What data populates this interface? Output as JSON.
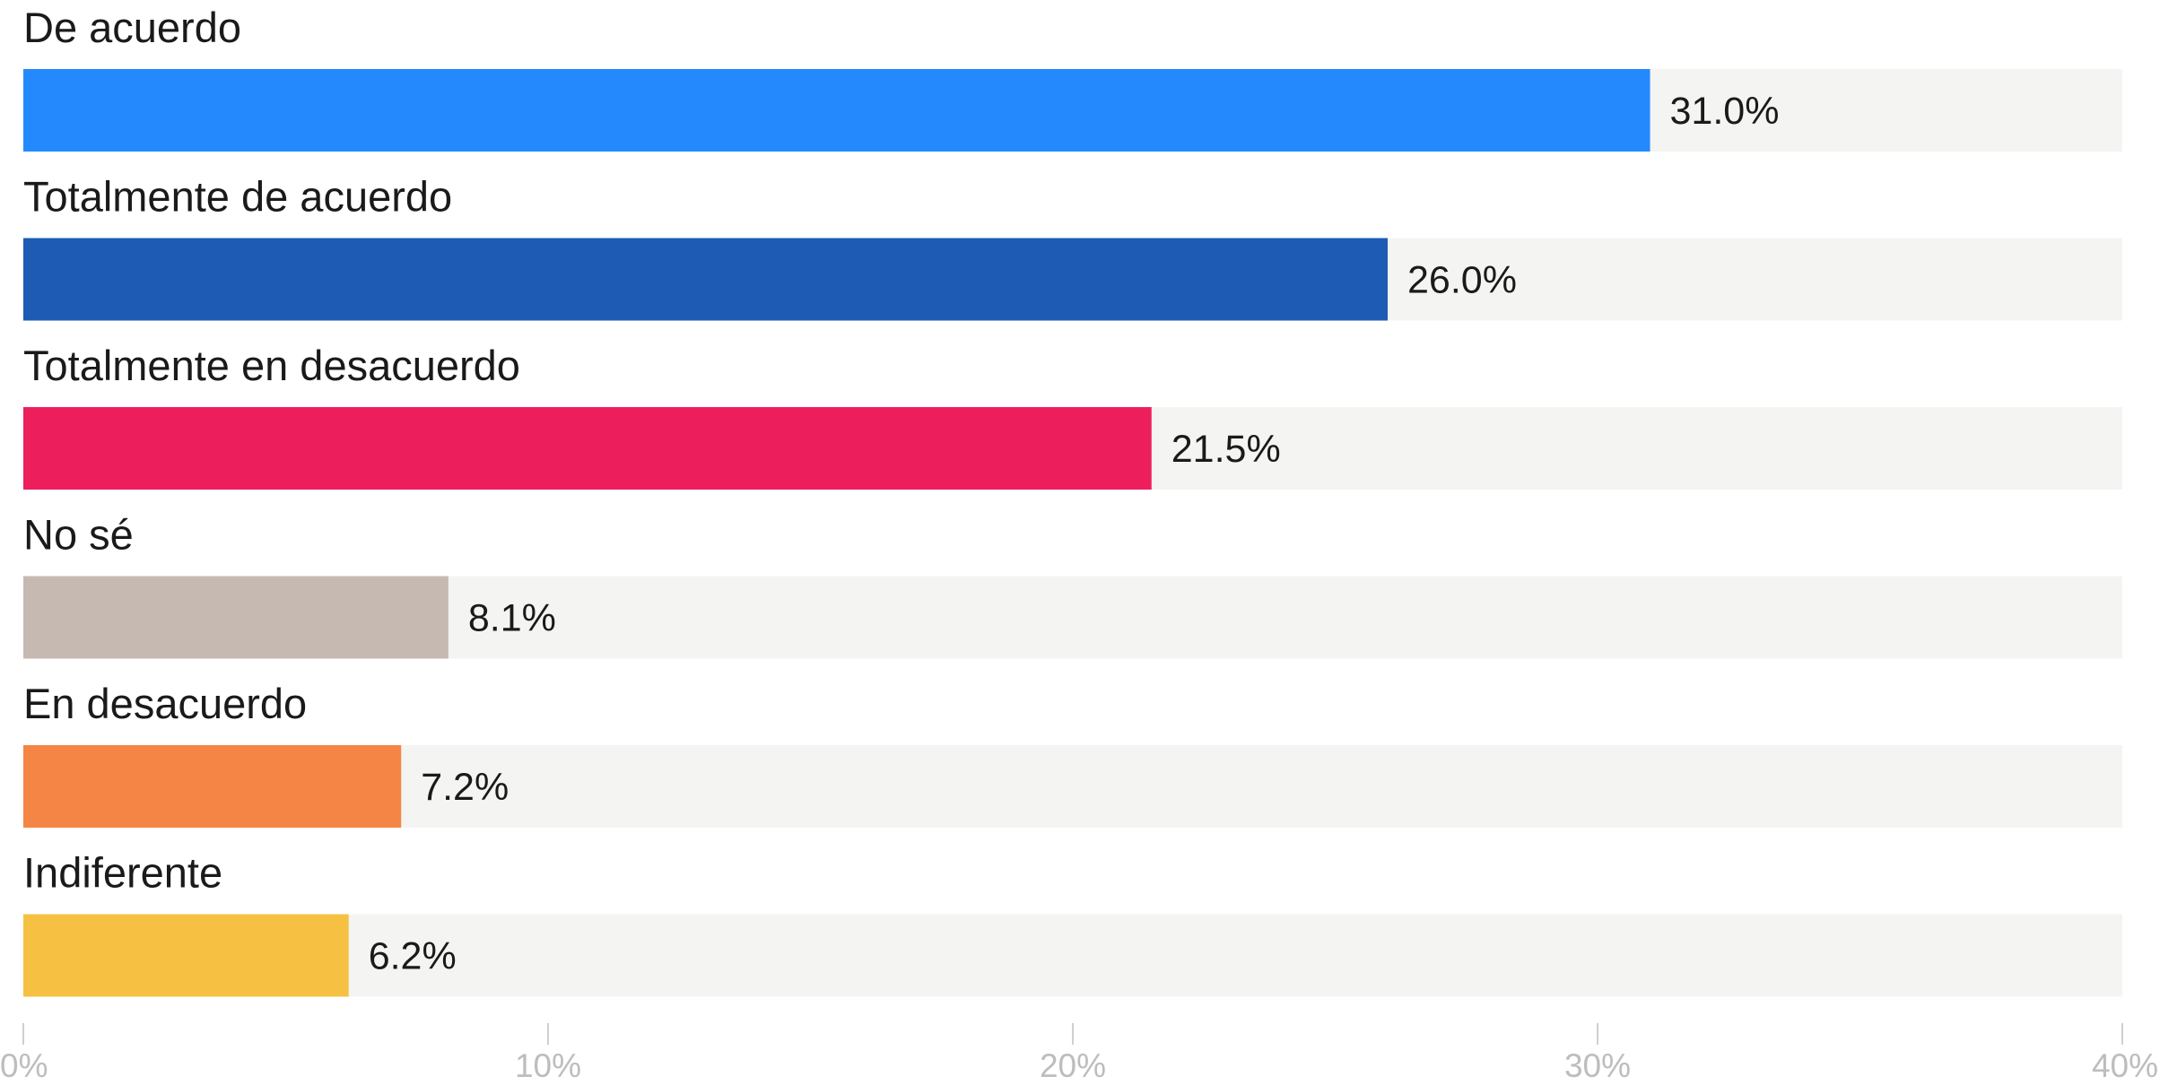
{
  "chart_data": {
    "type": "bar",
    "orientation": "horizontal",
    "title": "",
    "xlabel": "",
    "ylabel": "",
    "categories": [
      "De acuerdo",
      "Totalmente de acuerdo",
      "Totalmente en desacuerdo",
      "No sé",
      "En desacuerdo",
      "Indiferente"
    ],
    "values": [
      31.0,
      26.0,
      21.5,
      8.1,
      7.2,
      6.2
    ],
    "value_labels": [
      "31.0%",
      "26.0%",
      "21.5%",
      "8.1%",
      "7.2%",
      "6.2%"
    ],
    "colors": [
      "#2589FE",
      "#1D5BB5",
      "#EC1F5C",
      "#C6B9B1",
      "#F58544",
      "#F6C142"
    ],
    "track_color": "#F4F4F2",
    "xlim": [
      0,
      40
    ],
    "x_ticks": [
      0,
      10,
      20,
      30,
      40
    ],
    "x_tick_labels": [
      "0%",
      "10%",
      "20%",
      "30%",
      "40%"
    ],
    "grid": false,
    "legend": "none"
  }
}
